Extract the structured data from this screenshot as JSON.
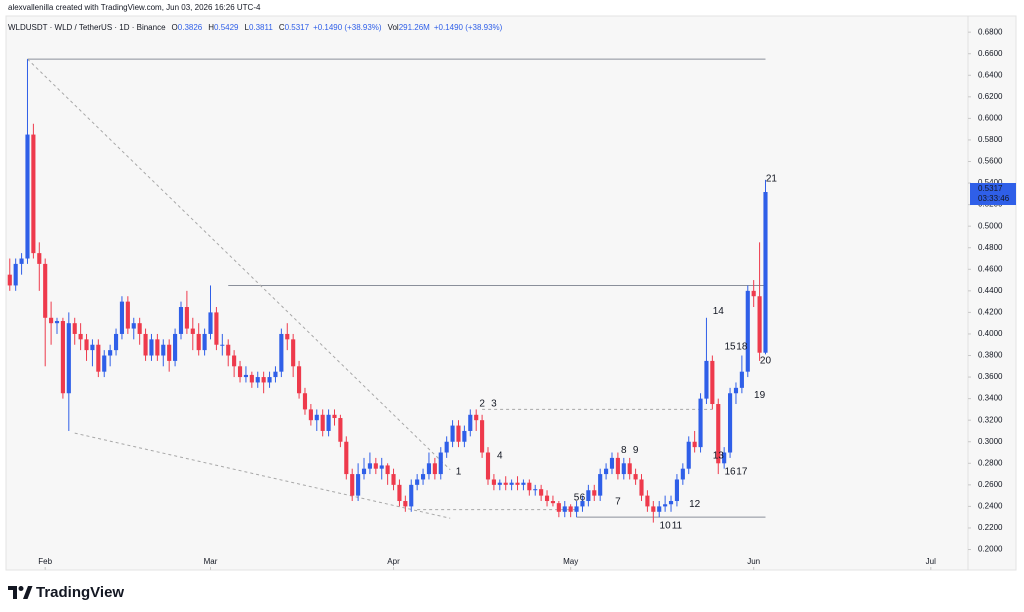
{
  "chart_data": {
    "type": "candlestick",
    "header": "alexvallenilla created with TradingView.com, Jun 03, 2026 16:26 UTC-4",
    "symbol": "WLDUSDT · WLD / TetherUS · 1D · Binance",
    "ohlc_letters": [
      "O",
      "H",
      "L",
      "C"
    ],
    "change": "+0.1490 (+38.93%)",
    "volume_label": "Vol",
    "volume": "291.26M",
    "volume_change": "+0.1490 (+38.93%)",
    "countdown": "03:33:46",
    "brand": "TradingView",
    "up_color": "#2f5fe8",
    "down_color": "#ee3a4c",
    "categories": [
      null,
      null,
      null,
      null,
      null,
      null,
      null,
      null,
      null,
      null,
      null,
      null,
      null,
      null,
      null,
      null,
      null,
      null,
      null,
      null,
      null,
      null,
      null,
      null,
      null,
      null,
      null,
      null,
      null,
      null,
      null,
      null,
      null,
      null,
      null,
      null,
      null,
      null,
      null,
      null,
      null,
      null,
      null,
      null,
      null,
      null,
      null,
      null,
      null,
      null,
      null,
      null,
      null,
      null,
      null,
      null,
      null,
      null,
      null,
      null,
      null,
      null,
      null,
      null,
      null,
      null,
      null,
      null,
      null,
      null,
      null,
      null,
      null,
      null,
      null,
      null,
      null,
      null,
      null,
      null,
      null,
      null,
      null,
      null,
      null,
      null,
      null,
      null,
      null,
      null,
      null,
      null,
      null,
      null,
      null,
      null,
      null,
      null,
      null,
      null,
      null,
      null,
      null,
      null,
      null,
      null,
      null,
      null,
      null,
      null,
      null,
      null,
      null,
      null,
      null,
      null,
      null,
      null,
      null,
      null,
      null,
      null,
      null,
      null,
      null,
      null,
      null,
      null,
      null
    ],
    "ohlc": [
      [
        0.455,
        0.47,
        0.44,
        0.445
      ],
      [
        0.445,
        0.47,
        0.44,
        0.465
      ],
      [
        0.465,
        0.475,
        0.455,
        0.47
      ],
      [
        0.47,
        0.655,
        0.465,
        0.585
      ],
      [
        0.585,
        0.595,
        0.47,
        0.475
      ],
      [
        0.475,
        0.485,
        0.44,
        0.465
      ],
      [
        0.465,
        0.47,
        0.37,
        0.415
      ],
      [
        0.415,
        0.43,
        0.39,
        0.41
      ],
      [
        0.41,
        0.415,
        0.4,
        0.412
      ],
      [
        0.412,
        0.415,
        0.34,
        0.345
      ],
      [
        0.345,
        0.42,
        0.31,
        0.41
      ],
      [
        0.41,
        0.415,
        0.39,
        0.4
      ],
      [
        0.4,
        0.41,
        0.385,
        0.395
      ],
      [
        0.395,
        0.4,
        0.375,
        0.385
      ],
      [
        0.385,
        0.395,
        0.37,
        0.39
      ],
      [
        0.39,
        0.395,
        0.36,
        0.365
      ],
      [
        0.365,
        0.385,
        0.36,
        0.38
      ],
      [
        0.38,
        0.39,
        0.37,
        0.385
      ],
      [
        0.385,
        0.405,
        0.38,
        0.4
      ],
      [
        0.4,
        0.435,
        0.395,
        0.43
      ],
      [
        0.43,
        0.435,
        0.4,
        0.405
      ],
      [
        0.405,
        0.415,
        0.395,
        0.41
      ],
      [
        0.41,
        0.415,
        0.39,
        0.4
      ],
      [
        0.4,
        0.405,
        0.375,
        0.38
      ],
      [
        0.38,
        0.4,
        0.375,
        0.395
      ],
      [
        0.395,
        0.4,
        0.375,
        0.38
      ],
      [
        0.38,
        0.395,
        0.37,
        0.39
      ],
      [
        0.39,
        0.395,
        0.365,
        0.375
      ],
      [
        0.375,
        0.405,
        0.37,
        0.4
      ],
      [
        0.4,
        0.43,
        0.395,
        0.425
      ],
      [
        0.425,
        0.44,
        0.4,
        0.405
      ],
      [
        0.405,
        0.415,
        0.385,
        0.4
      ],
      [
        0.4,
        0.41,
        0.38,
        0.385
      ],
      [
        0.385,
        0.405,
        0.38,
        0.4
      ],
      [
        0.4,
        0.445,
        0.395,
        0.42
      ],
      [
        0.42,
        0.425,
        0.385,
        0.39
      ],
      [
        0.39,
        0.4,
        0.38,
        0.39
      ],
      [
        0.39,
        0.395,
        0.37,
        0.38
      ],
      [
        0.38,
        0.385,
        0.36,
        0.37
      ],
      [
        0.37,
        0.375,
        0.355,
        0.36
      ],
      [
        0.36,
        0.37,
        0.355,
        0.362
      ],
      [
        0.362,
        0.365,
        0.35,
        0.355
      ],
      [
        0.355,
        0.365,
        0.35,
        0.36
      ],
      [
        0.36,
        0.365,
        0.345,
        0.355
      ],
      [
        0.355,
        0.365,
        0.35,
        0.36
      ],
      [
        0.36,
        0.37,
        0.355,
        0.365
      ],
      [
        0.365,
        0.405,
        0.36,
        0.4
      ],
      [
        0.4,
        0.41,
        0.385,
        0.395
      ],
      [
        0.395,
        0.4,
        0.36,
        0.37
      ],
      [
        0.37,
        0.375,
        0.34,
        0.345
      ],
      [
        0.345,
        0.35,
        0.325,
        0.33
      ],
      [
        0.33,
        0.335,
        0.315,
        0.32
      ],
      [
        0.32,
        0.33,
        0.31,
        0.325
      ],
      [
        0.325,
        0.33,
        0.305,
        0.31
      ],
      [
        0.31,
        0.33,
        0.305,
        0.325
      ],
      [
        0.325,
        0.33,
        0.315,
        0.322
      ],
      [
        0.322,
        0.325,
        0.295,
        0.3
      ],
      [
        0.3,
        0.305,
        0.265,
        0.27
      ],
      [
        0.27,
        0.275,
        0.245,
        0.25
      ],
      [
        0.25,
        0.28,
        0.245,
        0.27
      ],
      [
        0.27,
        0.285,
        0.265,
        0.275
      ],
      [
        0.275,
        0.29,
        0.27,
        0.28
      ],
      [
        0.28,
        0.285,
        0.27,
        0.275
      ],
      [
        0.275,
        0.285,
        0.265,
        0.278
      ],
      [
        0.278,
        0.28,
        0.26,
        0.27
      ],
      [
        0.27,
        0.275,
        0.255,
        0.26
      ],
      [
        0.26,
        0.265,
        0.24,
        0.245
      ],
      [
        0.245,
        0.25,
        0.235,
        0.24
      ],
      [
        0.24,
        0.265,
        0.235,
        0.26
      ],
      [
        0.26,
        0.27,
        0.255,
        0.265
      ],
      [
        0.265,
        0.275,
        0.26,
        0.27
      ],
      [
        0.27,
        0.29,
        0.265,
        0.28
      ],
      [
        0.28,
        0.285,
        0.265,
        0.27
      ],
      [
        0.27,
        0.295,
        0.265,
        0.29
      ],
      [
        0.29,
        0.305,
        0.285,
        0.3
      ],
      [
        0.3,
        0.32,
        0.295,
        0.315
      ],
      [
        0.315,
        0.32,
        0.295,
        0.3
      ],
      [
        0.3,
        0.315,
        0.295,
        0.31
      ],
      [
        0.31,
        0.33,
        0.305,
        0.325
      ],
      [
        0.325,
        0.33,
        0.31,
        0.32
      ],
      [
        0.32,
        0.325,
        0.285,
        0.29
      ],
      [
        0.29,
        0.295,
        0.26,
        0.265
      ],
      [
        0.265,
        0.27,
        0.255,
        0.26
      ],
      [
        0.26,
        0.265,
        0.255,
        0.262
      ],
      [
        0.262,
        0.268,
        0.255,
        0.26
      ],
      [
        0.26,
        0.265,
        0.255,
        0.262
      ],
      [
        0.262,
        0.268,
        0.255,
        0.26
      ],
      [
        0.26,
        0.265,
        0.255,
        0.262
      ],
      [
        0.262,
        0.265,
        0.25,
        0.255
      ],
      [
        0.255,
        0.26,
        0.25,
        0.256
      ],
      [
        0.256,
        0.26,
        0.245,
        0.25
      ],
      [
        0.25,
        0.255,
        0.24,
        0.245
      ],
      [
        0.245,
        0.25,
        0.24,
        0.243
      ],
      [
        0.243,
        0.245,
        0.23,
        0.235
      ],
      [
        0.235,
        0.245,
        0.23,
        0.24
      ],
      [
        0.24,
        0.242,
        0.23,
        0.235
      ],
      [
        0.235,
        0.245,
        0.23,
        0.24
      ],
      [
        0.24,
        0.25,
        0.235,
        0.245
      ],
      [
        0.245,
        0.26,
        0.24,
        0.255
      ],
      [
        0.255,
        0.26,
        0.245,
        0.25
      ],
      [
        0.25,
        0.275,
        0.245,
        0.27
      ],
      [
        0.27,
        0.28,
        0.265,
        0.275
      ],
      [
        0.275,
        0.29,
        0.27,
        0.285
      ],
      [
        0.285,
        0.29,
        0.265,
        0.27
      ],
      [
        0.27,
        0.285,
        0.265,
        0.28
      ],
      [
        0.28,
        0.285,
        0.265,
        0.27
      ],
      [
        0.27,
        0.275,
        0.26,
        0.265
      ],
      [
        0.265,
        0.27,
        0.245,
        0.25
      ],
      [
        0.25,
        0.255,
        0.235,
        0.24
      ],
      [
        0.24,
        0.245,
        0.225,
        0.235
      ],
      [
        0.235,
        0.245,
        0.23,
        0.24
      ],
      [
        0.24,
        0.25,
        0.235,
        0.242
      ],
      [
        0.242,
        0.25,
        0.235,
        0.245
      ],
      [
        0.245,
        0.27,
        0.24,
        0.265
      ],
      [
        0.265,
        0.28,
        0.26,
        0.275
      ],
      [
        0.275,
        0.305,
        0.27,
        0.3
      ],
      [
        0.3,
        0.31,
        0.29,
        0.295
      ],
      [
        0.295,
        0.345,
        0.29,
        0.34
      ],
      [
        0.34,
        0.415,
        0.335,
        0.375
      ],
      [
        0.375,
        0.38,
        0.33,
        0.335
      ],
      [
        0.335,
        0.34,
        0.27,
        0.28
      ],
      [
        0.28,
        0.295,
        0.275,
        0.29
      ],
      [
        0.29,
        0.35,
        0.285,
        0.345
      ],
      [
        0.345,
        0.355,
        0.335,
        0.35
      ],
      [
        0.35,
        0.38,
        0.345,
        0.365
      ],
      [
        0.365,
        0.445,
        0.36,
        0.44
      ],
      [
        0.44,
        0.45,
        0.425,
        0.435
      ],
      [
        0.435,
        0.485,
        0.375,
        0.3826
      ],
      [
        0.3826,
        0.5429,
        0.3811,
        0.5317
      ]
    ],
    "xlim": [
      -0.3,
      162.3
    ],
    "xticks": [
      {
        "value": 6,
        "label": "Feb"
      },
      {
        "value": 34,
        "label": "Mar"
      },
      {
        "value": 65,
        "label": "Apr"
      },
      {
        "value": 95,
        "label": "May"
      },
      {
        "value": 126,
        "label": "Jun"
      },
      {
        "value": 156,
        "label": "Jul"
      }
    ],
    "ylim": [
      0.181,
      0.695
    ],
    "yticks": [
      {
        "value": 0.2,
        "label": "0.2000"
      },
      {
        "value": 0.22,
        "label": "0.2200"
      },
      {
        "value": 0.24,
        "label": "0.2400"
      },
      {
        "value": 0.26,
        "label": "0.2600"
      },
      {
        "value": 0.28,
        "label": "0.2800"
      },
      {
        "value": 0.3,
        "label": "0.3000"
      },
      {
        "value": 0.32,
        "label": "0.3200"
      },
      {
        "value": 0.34,
        "label": "0.3400"
      },
      {
        "value": 0.36,
        "label": "0.3600"
      },
      {
        "value": 0.38,
        "label": "0.3800"
      },
      {
        "value": 0.4,
        "label": "0.4000"
      },
      {
        "value": 0.42,
        "label": "0.4200"
      },
      {
        "value": 0.44,
        "label": "0.4400"
      },
      {
        "value": 0.46,
        "label": "0.4600"
      },
      {
        "value": 0.48,
        "label": "0.4800"
      },
      {
        "value": 0.5,
        "label": "0.5000"
      },
      {
        "value": 0.52,
        "label": "0.5200"
      },
      {
        "value": 0.54,
        "label": "0.5400"
      },
      {
        "value": 0.56,
        "label": "0.5600"
      },
      {
        "value": 0.58,
        "label": "0.5800"
      },
      {
        "value": 0.6,
        "label": "0.6000"
      },
      {
        "value": 0.62,
        "label": "0.6200"
      },
      {
        "value": 0.64,
        "label": "0.6400"
      },
      {
        "value": 0.66,
        "label": "0.6600"
      },
      {
        "value": 0.68,
        "label": "0.6800"
      }
    ],
    "lines": [
      {
        "style": "solid",
        "x": [
          3,
          128
        ],
        "y": [
          0.655,
          0.655
        ]
      },
      {
        "style": "solid",
        "x": [
          37,
          128
        ],
        "y": [
          0.445,
          0.445
        ]
      },
      {
        "style": "dashed",
        "x": [
          80,
          119
        ],
        "y": [
          0.33,
          0.33
        ]
      },
      {
        "style": "solid",
        "x": [
          96,
          128
        ],
        "y": [
          0.23,
          0.23
        ]
      },
      {
        "style": "dashed",
        "x": [
          69,
          96
        ],
        "y": [
          0.237,
          0.237
        ]
      },
      {
        "style": "dashed",
        "x": [
          3,
          74.6
        ],
        "y": [
          0.655,
          0.274
        ]
      },
      {
        "style": "dashed",
        "x": [
          11,
          74.6
        ],
        "y": [
          0.308,
          0.229
        ]
      }
    ],
    "annotations": [
      {
        "text": "1",
        "x": 76,
        "y": 0.272
      },
      {
        "text": "2",
        "x": 80,
        "y": 0.335
      },
      {
        "text": "3",
        "x": 82,
        "y": 0.335
      },
      {
        "text": "4",
        "x": 83,
        "y": 0.287
      },
      {
        "text": "5",
        "x": 96,
        "y": 0.248
      },
      {
        "text": "6",
        "x": 97,
        "y": 0.248
      },
      {
        "text": "7",
        "x": 103,
        "y": 0.244
      },
      {
        "text": "8",
        "x": 104,
        "y": 0.292
      },
      {
        "text": "9",
        "x": 106,
        "y": 0.292
      },
      {
        "text": "10",
        "x": 111,
        "y": 0.222
      },
      {
        "text": "11",
        "x": 113,
        "y": 0.222
      },
      {
        "text": "12",
        "x": 116,
        "y": 0.242
      },
      {
        "text": "13",
        "x": 120,
        "y": 0.287
      },
      {
        "text": "14",
        "x": 120,
        "y": 0.421
      },
      {
        "text": "15",
        "x": 122,
        "y": 0.388
      },
      {
        "text": "16",
        "x": 122,
        "y": 0.272
      },
      {
        "text": "17",
        "x": 124,
        "y": 0.272
      },
      {
        "text": "18",
        "x": 124,
        "y": 0.388
      },
      {
        "text": "19",
        "x": 127,
        "y": 0.343
      },
      {
        "text": "20",
        "x": 128,
        "y": 0.375
      },
      {
        "text": "21",
        "x": 129,
        "y": 0.544
      }
    ]
  }
}
